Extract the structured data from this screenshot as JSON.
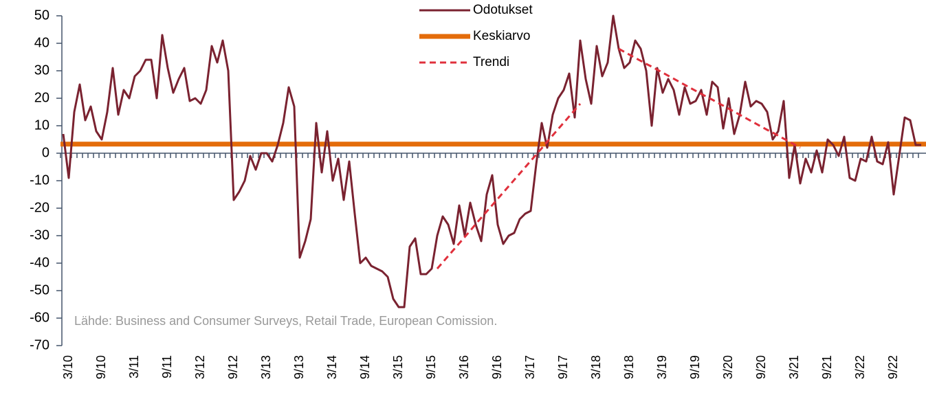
{
  "chart_data": {
    "type": "line",
    "annotation": "Lähde: Business and Consumer Surveys, Retail Trade, European Comission.",
    "categories": [
      null,
      "3/10",
      null,
      null,
      null,
      null,
      null,
      "9/10",
      null,
      null,
      null,
      null,
      null,
      "3/11",
      null,
      null,
      null,
      null,
      null,
      "9/11",
      null,
      null,
      null,
      null,
      null,
      "3/12",
      null,
      null,
      null,
      null,
      null,
      "9/12",
      null,
      null,
      null,
      null,
      null,
      "3/13",
      null,
      null,
      null,
      null,
      null,
      "9/13",
      null,
      null,
      null,
      null,
      null,
      "3/14",
      null,
      null,
      null,
      null,
      null,
      "9/14",
      null,
      null,
      null,
      null,
      null,
      "3/15",
      null,
      null,
      null,
      null,
      null,
      "9/15",
      null,
      null,
      null,
      null,
      null,
      "3/16",
      null,
      null,
      null,
      null,
      null,
      "9/16",
      null,
      null,
      null,
      null,
      null,
      "3/17",
      null,
      null,
      null,
      null,
      null,
      "9/17",
      null,
      null,
      null,
      null,
      null,
      "3/18",
      null,
      null,
      null,
      null,
      null,
      "9/18",
      null,
      null,
      null,
      null,
      null,
      "3/19",
      null,
      null,
      null,
      null,
      null,
      "9/19",
      null,
      null,
      null,
      null,
      null,
      "3/20",
      null,
      null,
      null,
      null,
      null,
      "9/20",
      null,
      null,
      null,
      null,
      null,
      "3/21",
      null,
      null,
      null,
      null,
      null,
      "9/21",
      null,
      null,
      null,
      null,
      null,
      "3/22",
      null,
      null,
      null,
      null,
      null,
      "9/22",
      null,
      null,
      null,
      null,
      null
    ],
    "series": [
      {
        "name": "Odotukset",
        "color": "#7a2230",
        "values": [
          7,
          -9,
          15,
          25,
          12,
          17,
          8,
          5,
          15,
          31,
          14,
          23,
          20,
          28,
          30,
          34,
          34,
          20,
          43,
          31,
          22,
          27,
          31,
          19,
          20,
          18,
          23,
          39,
          33,
          41,
          30,
          -17,
          -14,
          -10,
          -1,
          -6,
          0,
          0,
          -3,
          3,
          11,
          24,
          17,
          -38,
          -32,
          -24,
          11,
          -7,
          8,
          -10,
          -2,
          -17,
          -3,
          -22,
          -40,
          -38,
          -41,
          -42,
          -43,
          -45,
          -53,
          -56,
          -56,
          -34,
          -31,
          -44,
          -44,
          -42,
          -30,
          -23,
          -26,
          -33,
          -19,
          -30,
          -18,
          -26,
          -32,
          -15,
          -8,
          -26,
          -33,
          -30,
          -29,
          -24,
          -22,
          -21,
          -4,
          11,
          2,
          14,
          20,
          23,
          29,
          13,
          41,
          27,
          18,
          39,
          28,
          33,
          50,
          38,
          31,
          33,
          41,
          38,
          30,
          10,
          31,
          22,
          27,
          23,
          14,
          24,
          18,
          19,
          23,
          14,
          26,
          24,
          9,
          20,
          7,
          14,
          26,
          17,
          19,
          18,
          15,
          5,
          8,
          19,
          -9,
          3,
          -11,
          -2,
          -7,
          1,
          -7,
          5,
          3,
          -1,
          6,
          -9,
          -10,
          -2,
          -3,
          6,
          -3,
          -4,
          4,
          -15,
          -1,
          13,
          12,
          3,
          3
        ]
      },
      {
        "name": "Keskiarvo",
        "color": "#e46c0a",
        "value": 3.3
      },
      {
        "name": "Trendi",
        "color": "#e0303c",
        "dashed": true,
        "values": [
          null,
          null,
          null,
          null,
          null,
          null,
          null,
          null,
          null,
          null,
          null,
          null,
          null,
          null,
          null,
          null,
          null,
          null,
          null,
          null,
          null,
          null,
          null,
          null,
          null,
          null,
          null,
          null,
          null,
          null,
          null,
          null,
          null,
          null,
          null,
          null,
          null,
          null,
          null,
          null,
          null,
          null,
          null,
          null,
          null,
          null,
          null,
          null,
          null,
          null,
          null,
          null,
          null,
          null,
          null,
          null,
          null,
          null,
          null,
          null,
          null,
          null,
          null,
          null,
          null,
          null,
          null,
          null,
          -42,
          -39.7,
          -37.4,
          -35.1,
          -32.8,
          -30.5,
          -28.2,
          -25.8,
          -23.5,
          -21.2,
          -18.9,
          -16.6,
          -14.3,
          -12,
          -9.7,
          -7.4,
          -5.1,
          -2.8,
          -0.5,
          1.8,
          4.2,
          6.5,
          8.8,
          11.1,
          13.4,
          15.7,
          18,
          null,
          null,
          null,
          null,
          null,
          null,
          38,
          36.9,
          35.8,
          34.7,
          33.6,
          32.5,
          31.5,
          30.4,
          29.3,
          28.2,
          27.1,
          26,
          24.9,
          23.8,
          22.7,
          21.6,
          20.5,
          19.5,
          18.4,
          17.3,
          16.2,
          15.1,
          14,
          12.9,
          11.8,
          10.7,
          9.6,
          8.5,
          7.5,
          6.4,
          5.3,
          4.2,
          3.1,
          2,
          null,
          null,
          null,
          null,
          null,
          null,
          null,
          null,
          null,
          null,
          null,
          null,
          null,
          null,
          null,
          null,
          null,
          null,
          null,
          null,
          null,
          null
        ]
      }
    ],
    "ylim": [
      -70,
      50
    ],
    "yticks": [
      50,
      40,
      30,
      20,
      10,
      0,
      -10,
      -20,
      -30,
      -40,
      -50,
      -60,
      -70
    ],
    "legend": "top"
  }
}
